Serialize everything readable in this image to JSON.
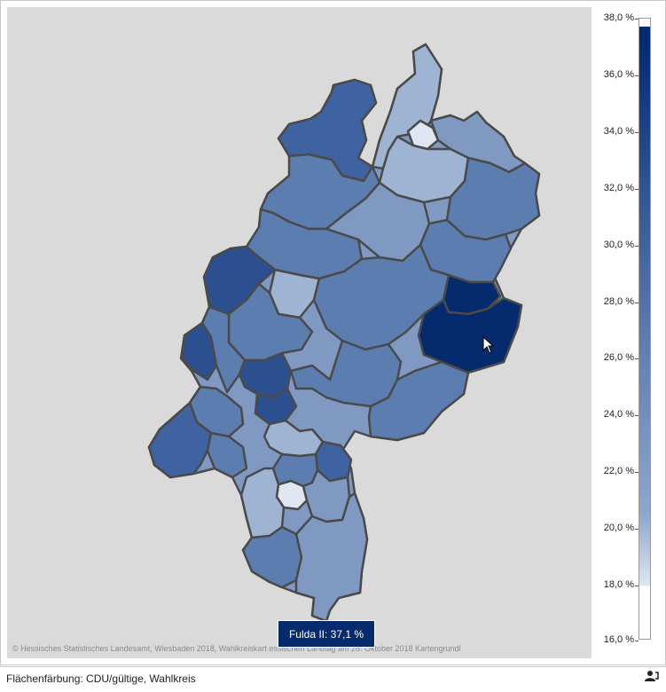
{
  "map": {
    "copyright": "© Hessisches Statistisches Landesamt, Wiesbaden 2018, Wahlkreiskart                    essischen Landtag am 28. Oktober 2018 Kartengrundl",
    "tooltip": "Fulda II: 37,1 %",
    "region_colors": {
      "darkest": "#062a6e",
      "dark": "#2c4f8f",
      "medium_dark": "#3f62a0",
      "medium": "#5c7db0",
      "light_medium": "#7f99c3",
      "light": "#9fb3d3",
      "lightest": "#dfe6f1",
      "border": "#4a4a4a"
    }
  },
  "legend": {
    "ticks": [
      "38,0 %",
      "36,0 %",
      "34,0 %",
      "32,0 %",
      "30,0 %",
      "28,0 %",
      "26,0 %",
      "24,0 %",
      "22,0 %",
      "20,0 %",
      "18,0 %",
      "16,0 %"
    ],
    "min": 16.0,
    "max": 38.0,
    "data_min": 18.0,
    "data_max": 37.1
  },
  "status": {
    "text": "Flächenfärbung: CDU/gültige, Wahlkreis",
    "icon": "user-settings-icon"
  }
}
